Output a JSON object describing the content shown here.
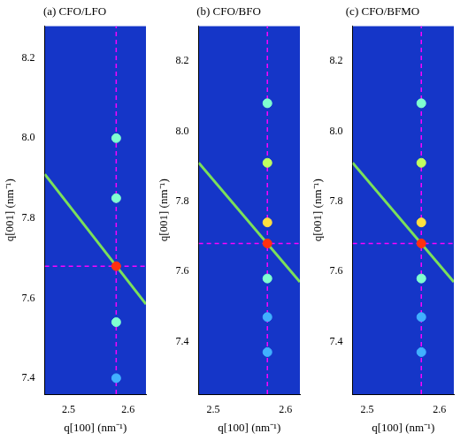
{
  "chart_data": [
    {
      "type": "scatter",
      "title": "(a) CFO/LFO",
      "xlabel": "q[100] (nm⁻¹)",
      "ylabel": "q[001] (nm⁻¹)",
      "xlim": [
        2.46,
        2.63
      ],
      "ylim": [
        7.36,
        8.28
      ],
      "xticks": [
        2.5,
        2.6
      ],
      "yticks": [
        7.4,
        7.6,
        7.8,
        {
          "value": 8,
          "label": "8.0"
        },
        8.2
      ],
      "grid": false,
      "series": [
        {
          "type": "scatter",
          "marker": "circle",
          "x": [
            2.58,
            2.58,
            2.58,
            2.58,
            2.58
          ],
          "values": [
            7.68,
            7.54,
            7.85,
            8.0,
            7.4
          ],
          "colors": [
            "#ff3010",
            "#7fffd0",
            "#7fffd0",
            "#7fffd0",
            "#40b0ff"
          ]
        },
        {
          "type": "line",
          "line_style": "solid",
          "color": "#7be05a",
          "x": [
            2.46,
            2.63
          ],
          "values": [
            7.91,
            7.585
          ]
        },
        {
          "type": "line",
          "line_style": "dashed",
          "color": "#ff00ff",
          "x": [
            2.58,
            2.58
          ],
          "values": [
            7.36,
            8.28
          ]
        },
        {
          "type": "line",
          "line_style": "dashed",
          "color": "#ff00ff",
          "x": [
            2.46,
            2.63
          ],
          "values": [
            7.68,
            7.68
          ]
        }
      ]
    },
    {
      "type": "scatter",
      "title": "(b) CFO/BFO",
      "xlabel": "q[100] (nm⁻¹)",
      "ylabel": "q[001] (nm⁻¹)",
      "xlim": [
        2.48,
        2.62
      ],
      "ylim": [
        7.25,
        8.3
      ],
      "xticks": [
        2.5,
        2.6
      ],
      "yticks": [
        7.4,
        7.6,
        7.8,
        {
          "value": 8,
          "label": "8.0"
        },
        8.2
      ],
      "grid": false,
      "series": [
        {
          "type": "scatter",
          "marker": "circle",
          "x": [
            2.575,
            2.575,
            2.575,
            2.575,
            2.575,
            2.575,
            2.575
          ],
          "values": [
            7.68,
            7.74,
            7.91,
            8.08,
            7.58,
            7.47,
            7.37
          ],
          "colors": [
            "#ff3010",
            "#ffe040",
            "#c0ff60",
            "#7fffd0",
            "#7fffd0",
            "#40b0ff",
            "#40b0ff"
          ]
        },
        {
          "type": "line",
          "line_style": "solid",
          "color": "#7be05a",
          "x": [
            2.48,
            2.62
          ],
          "values": [
            7.91,
            7.57
          ]
        },
        {
          "type": "line",
          "line_style": "dashed",
          "color": "#ff00ff",
          "x": [
            2.575,
            2.575
          ],
          "values": [
            7.25,
            8.3
          ]
        },
        {
          "type": "line",
          "line_style": "dashed",
          "color": "#ff00ff",
          "x": [
            2.48,
            2.62
          ],
          "values": [
            7.68,
            7.68
          ]
        }
      ]
    },
    {
      "type": "scatter",
      "title": "(c) CFO/BFMO",
      "xlabel": "q[100] (nm⁻¹)",
      "ylabel": "q[001] (nm⁻¹)",
      "xlim": [
        2.48,
        2.62
      ],
      "ylim": [
        7.25,
        8.3
      ],
      "xticks": [
        2.5,
        2.6
      ],
      "yticks": [
        7.4,
        7.6,
        7.8,
        {
          "value": 8,
          "label": "8.0"
        },
        8.2
      ],
      "grid": false,
      "series": [
        {
          "type": "scatter",
          "marker": "circle",
          "x": [
            2.575,
            2.575,
            2.575,
            2.575,
            2.575,
            2.575,
            2.575
          ],
          "values": [
            7.68,
            7.74,
            7.91,
            8.08,
            7.58,
            7.47,
            7.37
          ],
          "colors": [
            "#ff3010",
            "#ffe040",
            "#c0ff60",
            "#7fffd0",
            "#7fffd0",
            "#40b0ff",
            "#40b0ff"
          ]
        },
        {
          "type": "line",
          "line_style": "solid",
          "color": "#7be05a",
          "x": [
            2.48,
            2.62
          ],
          "values": [
            7.91,
            7.57
          ]
        },
        {
          "type": "line",
          "line_style": "dashed",
          "color": "#ff00ff",
          "x": [
            2.575,
            2.575
          ],
          "values": [
            7.25,
            8.3
          ]
        },
        {
          "type": "line",
          "line_style": "dashed",
          "color": "#ff00ff",
          "x": [
            2.48,
            2.62
          ],
          "values": [
            7.68,
            7.68
          ]
        }
      ]
    }
  ]
}
